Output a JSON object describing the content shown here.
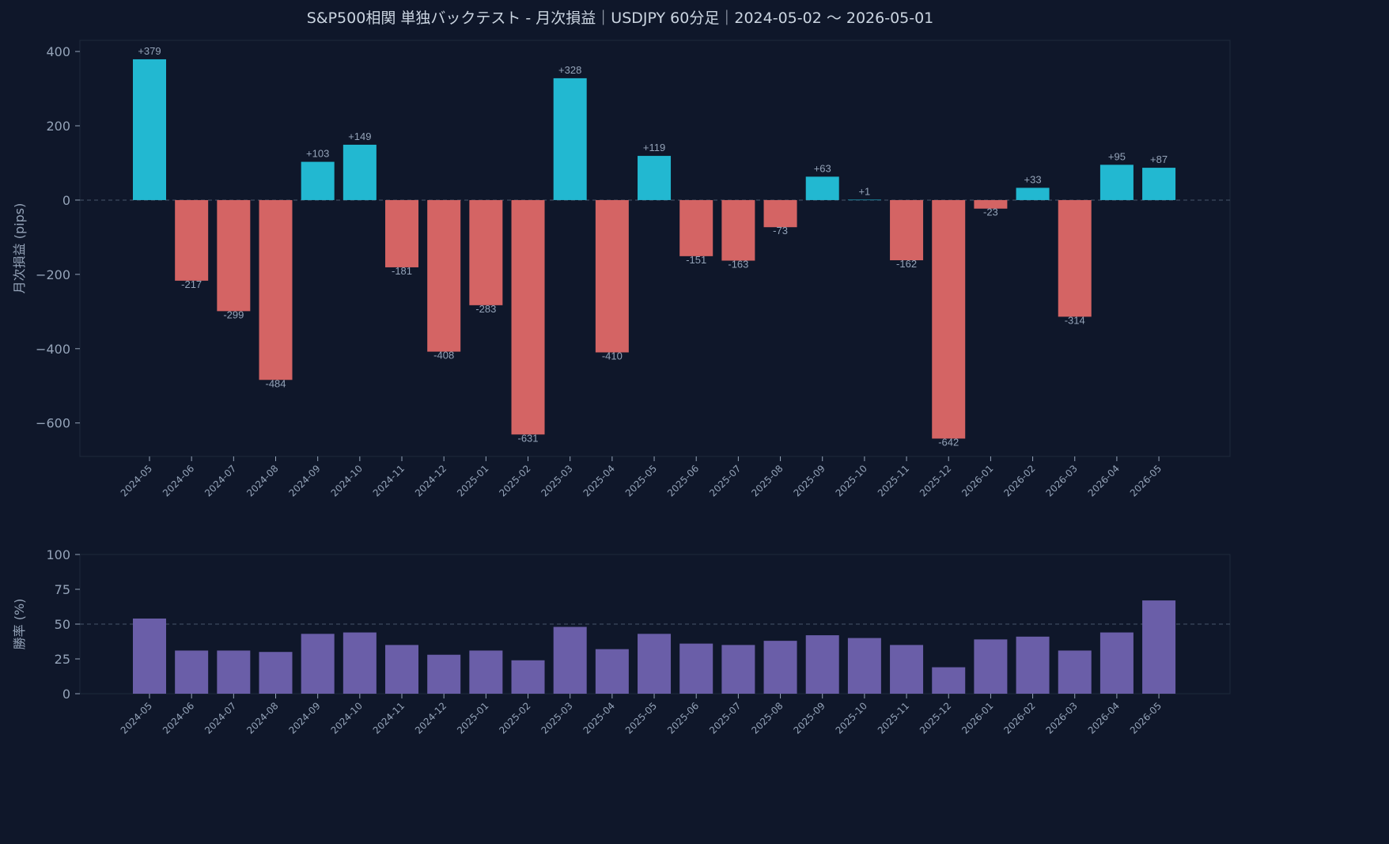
{
  "title": "S&P500相関 単独バックテスト - 月次損益｜USDJPY 60分足｜2024-05-02 〜 2026-05-01",
  "colors": {
    "background": "#0f172a",
    "frame": "#1e293b",
    "text": "#94a3b8",
    "positive": "#22b8d1",
    "negative": "#d46464",
    "winrate": "#6a5ea8",
    "zero_line": "#475569"
  },
  "chart_data": [
    {
      "type": "bar",
      "ylabel": "月次損益 (pips)",
      "ylim": [
        -690,
        430
      ],
      "yticks": [
        400,
        200,
        0,
        -200,
        -400,
        -600
      ],
      "ytick_labels": [
        "400",
        "200",
        "0",
        "−200",
        "−400",
        "−600"
      ],
      "zero_reference_line": true,
      "categories": [
        "2024-05",
        "2024-06",
        "2024-07",
        "2024-08",
        "2024-09",
        "2024-10",
        "2024-11",
        "2024-12",
        "2025-01",
        "2025-02",
        "2025-03",
        "2025-04",
        "2025-05",
        "2025-06",
        "2025-07",
        "2025-08",
        "2025-09",
        "2025-10",
        "2025-11",
        "2025-12",
        "2026-01",
        "2026-02",
        "2026-03",
        "2026-04",
        "2026-05"
      ],
      "values": [
        379,
        -217,
        -299,
        -484,
        103,
        149,
        -181,
        -408,
        -283,
        -631,
        328,
        -410,
        119,
        -151,
        -163,
        -73,
        63,
        1,
        -162,
        -642,
        -23,
        33,
        -314,
        95,
        87
      ],
      "data_labels": [
        "+379",
        "-217",
        "-299",
        "-484",
        "+103",
        "+149",
        "-181",
        "-408",
        "-283",
        "-631",
        "+328",
        "-410",
        "+119",
        "-151",
        "-163",
        "-73",
        "+63",
        "+1",
        "-162",
        "-642",
        "-23",
        "+33",
        "-314",
        "+95",
        "+87"
      ]
    },
    {
      "type": "bar",
      "ylabel": "勝率 (%)",
      "ylim": [
        0,
        100
      ],
      "yticks": [
        100,
        75,
        50,
        25,
        0
      ],
      "ytick_labels": [
        "100",
        "75",
        "50",
        "25",
        "0"
      ],
      "reference_line": 50,
      "categories": [
        "2024-05",
        "2024-06",
        "2024-07",
        "2024-08",
        "2024-09",
        "2024-10",
        "2024-11",
        "2024-12",
        "2025-01",
        "2025-02",
        "2025-03",
        "2025-04",
        "2025-05",
        "2025-06",
        "2025-07",
        "2025-08",
        "2025-09",
        "2025-10",
        "2025-11",
        "2025-12",
        "2026-01",
        "2026-02",
        "2026-03",
        "2026-04",
        "2026-05"
      ],
      "values": [
        54,
        31,
        31,
        30,
        43,
        44,
        35,
        28,
        31,
        24,
        48,
        32,
        43,
        36,
        35,
        38,
        42,
        40,
        35,
        19,
        39,
        41,
        31,
        44,
        67
      ]
    }
  ]
}
